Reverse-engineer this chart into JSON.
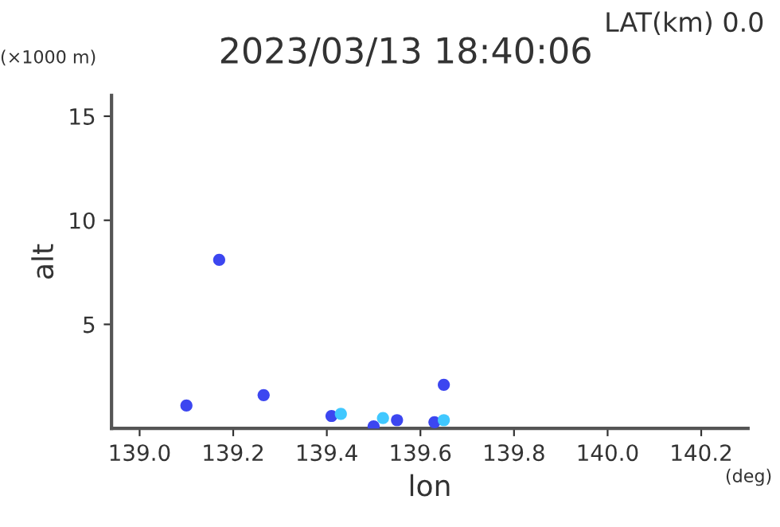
{
  "chart_data": {
    "type": "scatter",
    "title": "2023/03/13 18:40:06",
    "xlabel": "lon",
    "ylabel": "alt",
    "annotations": [
      "LAT(km) 0.0",
      "(×1000 m)",
      "(deg)"
    ],
    "series": [
      {
        "color": "#3c46f0",
        "x": [
          139.1,
          139.17,
          139.265,
          139.41,
          139.5,
          139.55,
          139.63,
          139.65
        ],
        "values": [
          1.1,
          8.1,
          1.6,
          0.6,
          0.1,
          0.4,
          0.3,
          2.1
        ]
      },
      {
        "color": "#40c8ff",
        "x": [
          139.43,
          139.52,
          139.65
        ],
        "values": [
          0.7,
          0.5,
          0.4
        ]
      }
    ],
    "xlim": [
      138.94,
      140.3
    ],
    "xticks": [
      {
        "value": 139.0,
        "label": "139.0"
      },
      139.2,
      139.4,
      139.6,
      139.8,
      {
        "value": 140.0,
        "label": "140.0"
      },
      140.2
    ],
    "ylim": [
      0,
      16
    ],
    "yticks": [
      5,
      10,
      15
    ],
    "grid": false,
    "marker": "circle",
    "legend": false
  }
}
